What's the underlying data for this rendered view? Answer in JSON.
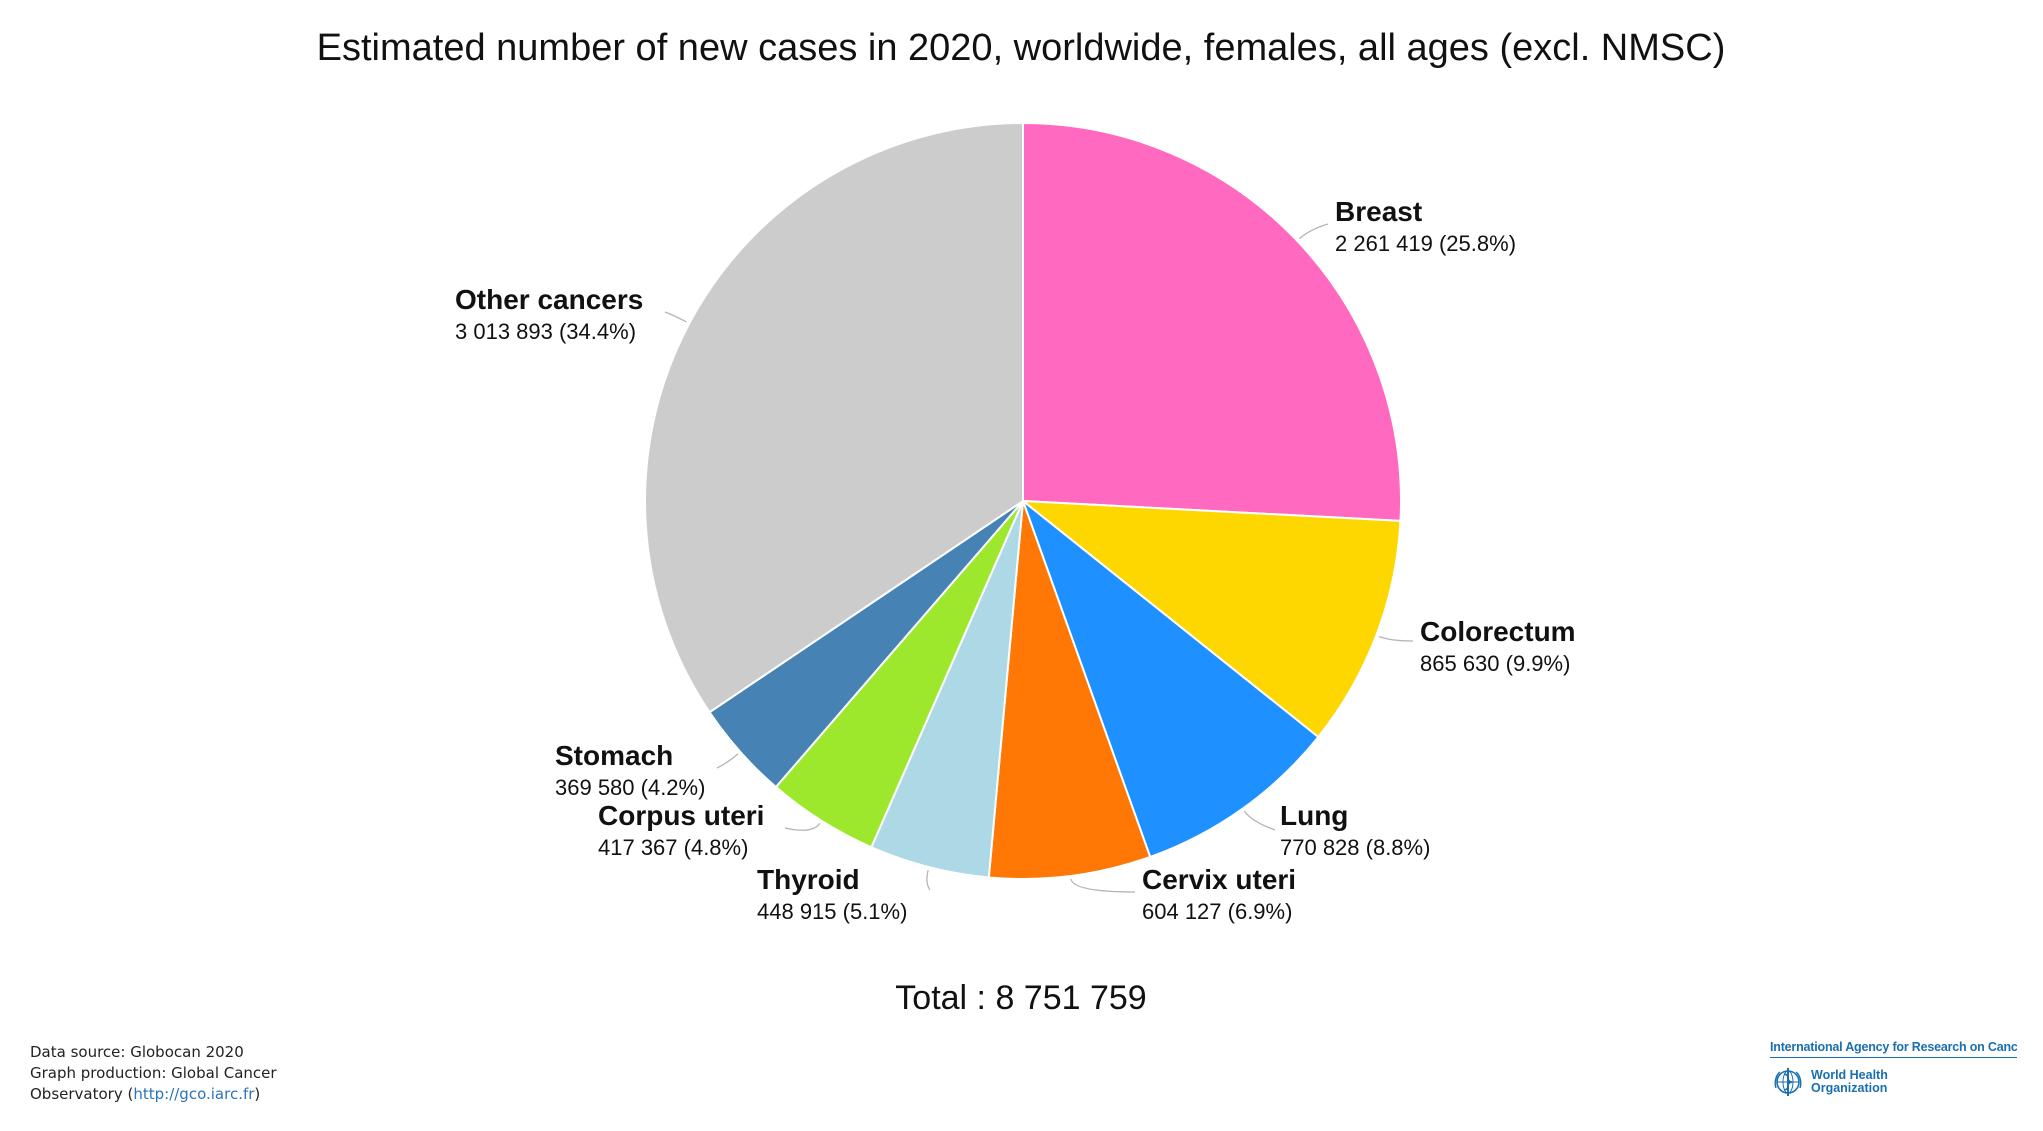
{
  "chart_data": {
    "type": "pie",
    "title": "Estimated number of new cases in 2020, worldwide, females, all ages (excl. NMSC)",
    "total_text": "Total : 8 751 759",
    "slices": [
      {
        "name": "Breast",
        "value": 2261419,
        "value_label": "2 261 419 (25.8%)",
        "color": "#ff69bf"
      },
      {
        "name": "Colorectum",
        "value": 865630,
        "value_label": "865 630 (9.9%)",
        "color": "#ffd700"
      },
      {
        "name": "Lung",
        "value": 770828,
        "value_label": "770 828 (8.8%)",
        "color": "#1e90ff"
      },
      {
        "name": "Cervix uteri",
        "value": 604127,
        "value_label": "604 127 (6.9%)",
        "color": "#ff7704"
      },
      {
        "name": "Thyroid",
        "value": 448915,
        "value_label": "448 915 (5.1%)",
        "color": "#add8e6"
      },
      {
        "name": "Corpus uteri",
        "value": 417367,
        "value_label": "417 367 (4.8%)",
        "color": "#9de82c"
      },
      {
        "name": "Stomach",
        "value": 369580,
        "value_label": "369 580 (4.2%)",
        "color": "#4682b4"
      },
      {
        "name": "Other cancers",
        "value": 3013893,
        "value_label": "3 013 893 (34.4%)",
        "color": "#cccccc"
      }
    ]
  },
  "footer": {
    "line1": "Data source: Globocan 2020",
    "line2": "Graph production: Global Cancer",
    "line3_prefix": "Observatory (",
    "link": "http://gco.iarc.fr",
    "line3_suffix": ")"
  },
  "logo": {
    "iarc": "International Agency for Research on Cancer",
    "who_line1": "World Health",
    "who_line2": "Organization"
  }
}
